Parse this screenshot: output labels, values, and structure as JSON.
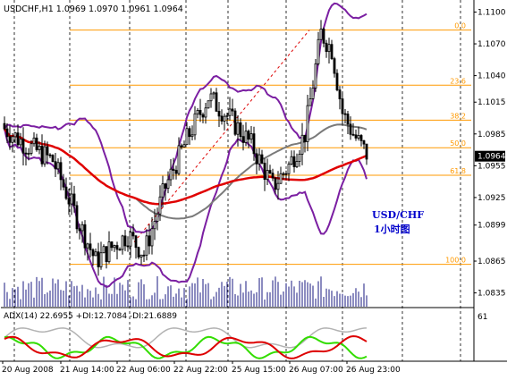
{
  "header": {
    "symbol_line": "USDCHF,H1  1.0969 1.0970 1.0961 1.0964"
  },
  "indicator": {
    "label": "ADX(14) 22.6955 +DI:12.7084 -DI:21.6889",
    "scale_label": "61"
  },
  "annotation": {
    "line1": "USD/CHF",
    "line2": "1小时图"
  },
  "price_axis": {
    "ticks": [
      "1.1100",
      "1.1070",
      "1.1040",
      "1.1015",
      "1.0985",
      "1.0955",
      "1.0925",
      "1.0899",
      "1.0865",
      "1.0835"
    ],
    "current_price": "1.0964"
  },
  "time_axis": {
    "labels": [
      "20 Aug 2008",
      "21 Aug 14:00",
      "22 Aug 06:00",
      "22 Aug 22:00",
      "25 Aug 15:00",
      "26 Aug 07:00",
      "26 Aug 23:00"
    ]
  },
  "fibonacci": {
    "levels": [
      {
        "label": "0.0",
        "price": 1.1083
      },
      {
        "label": "23.6",
        "price": 1.1031
      },
      {
        "label": "38.2",
        "price": 1.0998
      },
      {
        "label": "50.0",
        "price": 1.0972
      },
      {
        "label": "61.8",
        "price": 1.0946
      },
      {
        "label": "100.0",
        "price": 1.0862
      }
    ]
  },
  "colors": {
    "background": "#ffffff",
    "candles": "#000000",
    "bollinger": "#7b1fa2",
    "ma_slow": "#e00000",
    "ma_mid": "#7a7a7a",
    "fib": "#ff9900",
    "adx": "#b3b3b3",
    "plus_di": "#33dd00",
    "minus_di": "#dd0000",
    "annotation": "#0000cc",
    "current_price_box": "#000000"
  },
  "chart_data": {
    "type": "candlestick",
    "title": "USDCHF,H1  1.0969 1.0970 1.0961 1.0964",
    "ylim": [
      1.0822,
      1.1108
    ],
    "indicator_ylim": [
      0,
      61
    ]
  }
}
